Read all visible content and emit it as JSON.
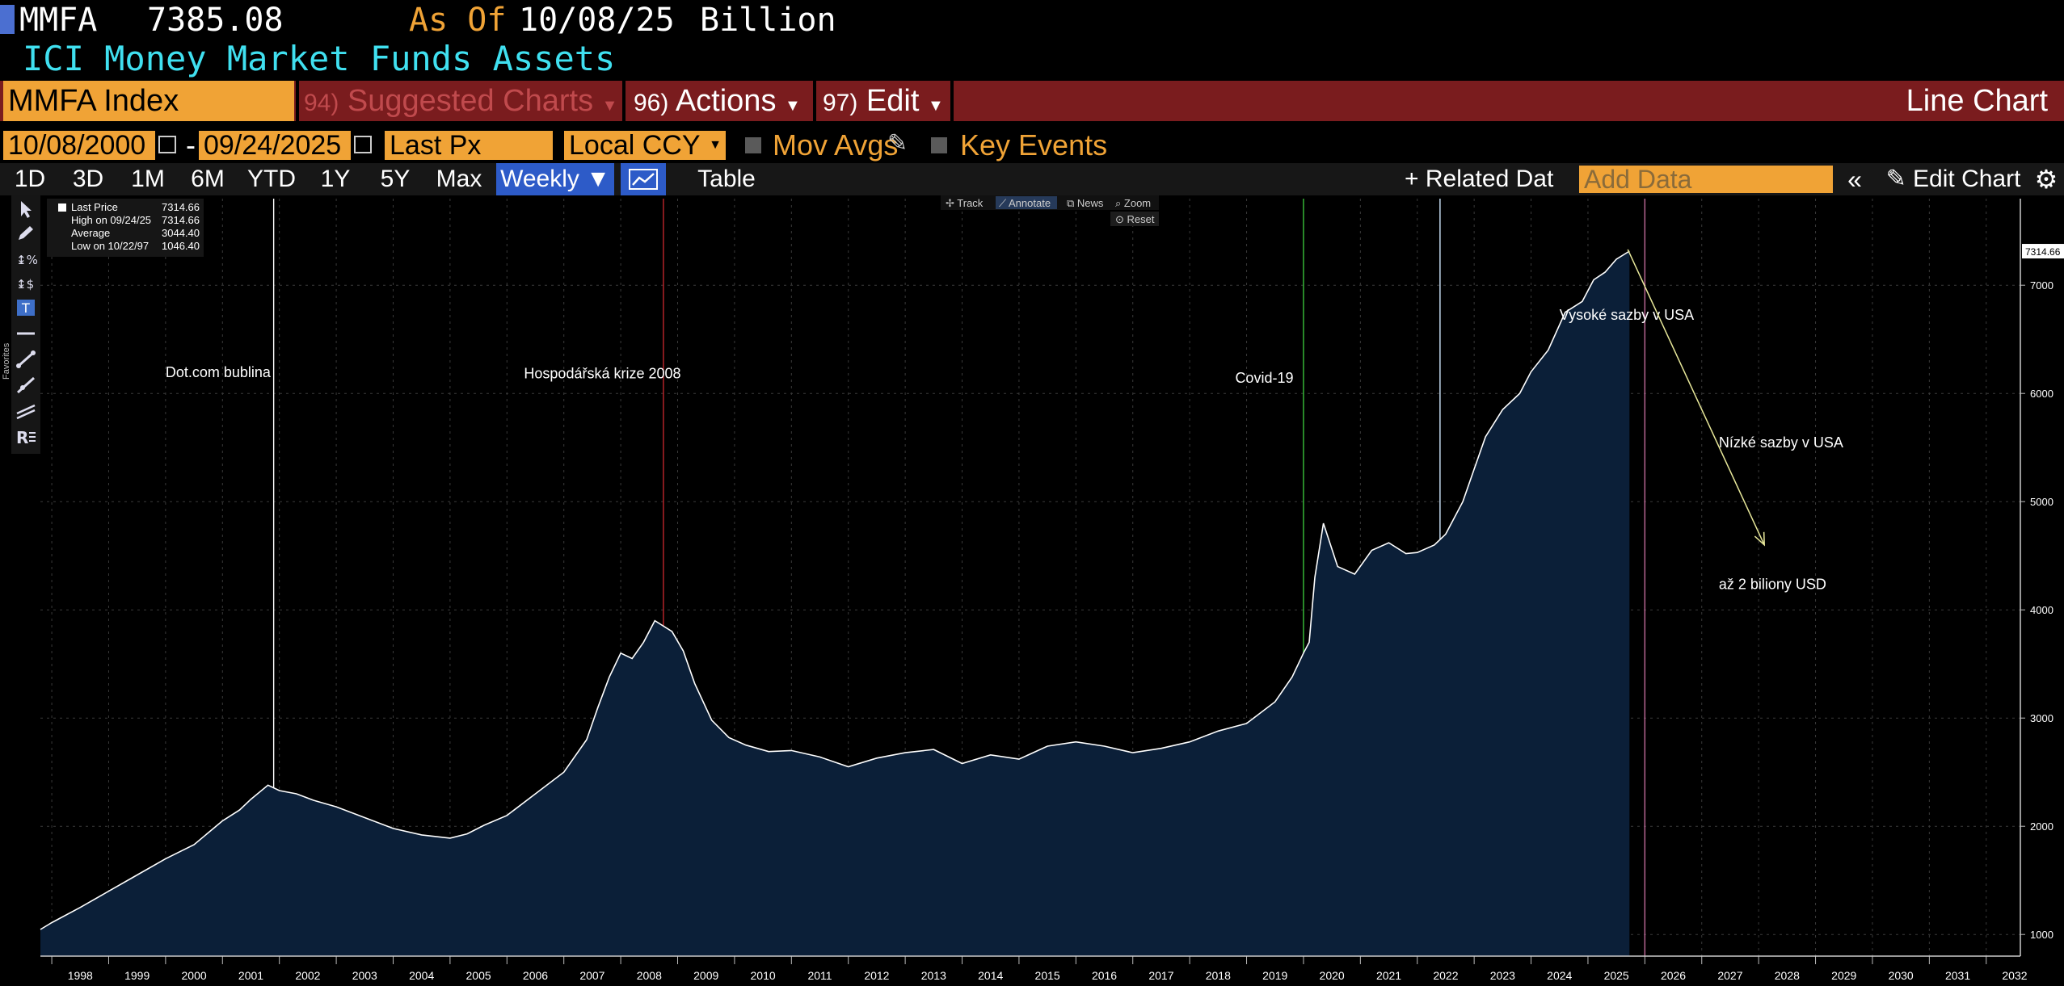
{
  "header": {
    "ticker": "MMFA",
    "value": "7385.08",
    "as_of_label": "As Of",
    "as_of_date": "10/08/25",
    "unit": "Billion",
    "title": "ICI Money Market Funds Assets"
  },
  "toolbar": {
    "security": "MMFA Index",
    "suggested_num": "94)",
    "suggested_label": "Suggested Charts",
    "actions_num": "96)",
    "actions_label": "Actions",
    "edit_num": "97)",
    "edit_label": "Edit",
    "chart_type": "Line Chart"
  },
  "options": {
    "start_date": "10/08/2000",
    "date_sep": "-",
    "end_date": "09/24/2025",
    "field": "Last Px",
    "currency": "Local CCY",
    "mov_avgs": "Mov Avgs",
    "key_events": "Key Events"
  },
  "periods": {
    "items": [
      "1D",
      "3D",
      "1M",
      "6M",
      "YTD",
      "1Y",
      "5Y",
      "Max"
    ],
    "frequency": "Weekly ▼",
    "table": "Table",
    "related": "+ Related Dat",
    "add_data_placeholder": "Add Data",
    "edit_chart": "Edit Chart"
  },
  "side": {
    "favorites": "Favorites"
  },
  "chart_controls": {
    "track": "Track",
    "annotate": "Annotate",
    "news": "News",
    "zoom": "Zoom",
    "reset": "Reset"
  },
  "legend": {
    "rows": [
      {
        "label": "Last Price",
        "value": "7314.66"
      },
      {
        "label": "High on 09/24/25",
        "value": "7314.66"
      },
      {
        "label": "Average",
        "value": "3044.40"
      },
      {
        "label": "Low on 10/22/97",
        "value": "1046.40"
      }
    ]
  },
  "colors": {
    "accent_orange": "#f0a336",
    "toolbar_red": "#7a1c1e",
    "title_cyan": "#40e0f0",
    "area_fill": "#0b1f38",
    "line": "#ffffff"
  },
  "chart_data": {
    "type": "area",
    "x_unit": "year",
    "x": [
      1997.8,
      1998.0,
      1998.5,
      1999.0,
      1999.5,
      2000.0,
      2000.5,
      2001.0,
      2001.3,
      2001.5,
      2001.8,
      2002.0,
      2002.3,
      2002.6,
      2003.0,
      2003.5,
      2004.0,
      2004.5,
      2005.0,
      2005.3,
      2005.6,
      2006.0,
      2006.5,
      2007.0,
      2007.4,
      2007.6,
      2007.8,
      2008.0,
      2008.2,
      2008.4,
      2008.6,
      2008.9,
      2009.1,
      2009.3,
      2009.6,
      2009.9,
      2010.2,
      2010.6,
      2011.0,
      2011.5,
      2012.0,
      2012.5,
      2013.0,
      2013.5,
      2014.0,
      2014.5,
      2015.0,
      2015.5,
      2016.0,
      2016.5,
      2017.0,
      2017.5,
      2018.0,
      2018.5,
      2019.0,
      2019.5,
      2019.8,
      2020.0,
      2020.1,
      2020.2,
      2020.35,
      2020.6,
      2020.9,
      2021.2,
      2021.5,
      2021.8,
      2022.0,
      2022.3,
      2022.5,
      2022.8,
      2023.0,
      2023.2,
      2023.5,
      2023.8,
      2024.0,
      2024.3,
      2024.6,
      2024.9,
      2025.1,
      2025.3,
      2025.5,
      2025.73
    ],
    "y": [
      1046,
      1110,
      1250,
      1400,
      1550,
      1700,
      1830,
      2050,
      2150,
      2250,
      2380,
      2330,
      2300,
      2240,
      2180,
      2080,
      1980,
      1920,
      1890,
      1930,
      2010,
      2100,
      2300,
      2500,
      2800,
      3100,
      3380,
      3600,
      3550,
      3700,
      3900,
      3800,
      3620,
      3320,
      2980,
      2820,
      2750,
      2690,
      2700,
      2640,
      2550,
      2630,
      2680,
      2710,
      2580,
      2660,
      2620,
      2740,
      2780,
      2740,
      2680,
      2720,
      2780,
      2880,
      2950,
      3150,
      3380,
      3600,
      3700,
      4300,
      4800,
      4400,
      4330,
      4550,
      4620,
      4520,
      4530,
      4600,
      4700,
      5000,
      5300,
      5600,
      5850,
      6000,
      6200,
      6400,
      6750,
      6850,
      7050,
      7120,
      7240,
      7314.66
    ],
    "ylim": [
      800,
      7800
    ],
    "yticks": [
      1000,
      2000,
      3000,
      4000,
      5000,
      6000,
      7000
    ],
    "xlim": [
      1997.8,
      2032.6
    ],
    "xticks": [
      "1998",
      "1999",
      "2000",
      "2001",
      "2002",
      "2003",
      "2004",
      "2005",
      "2006",
      "2007",
      "2008",
      "2009",
      "2010",
      "2011",
      "2012",
      "2013",
      "2014",
      "2015",
      "2016",
      "2017",
      "2018",
      "2019",
      "2020",
      "2021",
      "2022",
      "2023",
      "2024",
      "2025",
      "2026",
      "2027",
      "2028",
      "2029",
      "2030",
      "2031",
      "2032"
    ],
    "last_value_label": "7314.66",
    "vertical_markers": [
      {
        "x": 2001.9,
        "color": "#ffffff"
      },
      {
        "x": 2008.75,
        "color": "#c0262c"
      },
      {
        "x": 2020.0,
        "color": "#3ac03a"
      },
      {
        "x": 2022.4,
        "color": "#cfe7ff"
      },
      {
        "x": 2026.0,
        "color": "#c06a9a"
      }
    ],
    "annotations": [
      {
        "text": "Dot.com bublina",
        "x": 2000.0,
        "y": 6150
      },
      {
        "text": "Hospodářská krize 2008",
        "x": 2006.3,
        "y": 6140
      },
      {
        "text": "Covid-19",
        "x": 2018.8,
        "y": 6100
      },
      {
        "text": "Vysoké sazby v USA",
        "x": 2024.5,
        "y": 6680
      },
      {
        "text": "Nízké sazby v USA",
        "x": 2027.3,
        "y": 5500
      },
      {
        "text": "až 2 biliony USD",
        "x": 2027.3,
        "y": 4190
      }
    ],
    "arrow": {
      "x1": 2025.7,
      "y1": 7330,
      "x2": 2028.1,
      "y2": 4600,
      "color": "#e8e89a"
    }
  }
}
